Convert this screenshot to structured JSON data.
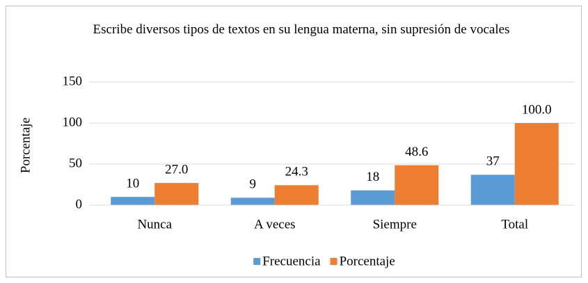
{
  "chart_data": {
    "type": "bar",
    "title": "Escribe diversos tipos de textos en su lengua materna, sin supresión de vocales",
    "y_label": "Porcentaje",
    "categories": [
      "Nunca",
      "A veces",
      "Siempre",
      "Total"
    ],
    "series": [
      {
        "name": "Frecuencia",
        "color": "#5b9bd5",
        "values": [
          10,
          9,
          18,
          37
        ]
      },
      {
        "name": "Porcentaje",
        "color": "#ed7d31",
        "values": [
          27,
          24.3,
          48.6,
          100
        ],
        "value_labels": [
          "27.0",
          "24.3",
          "48.6",
          "100.0"
        ]
      }
    ],
    "ylim": [
      0,
      150
    ],
    "yticks": [
      0,
      50,
      100,
      150
    ],
    "grid": true,
    "legend": "bottom"
  }
}
